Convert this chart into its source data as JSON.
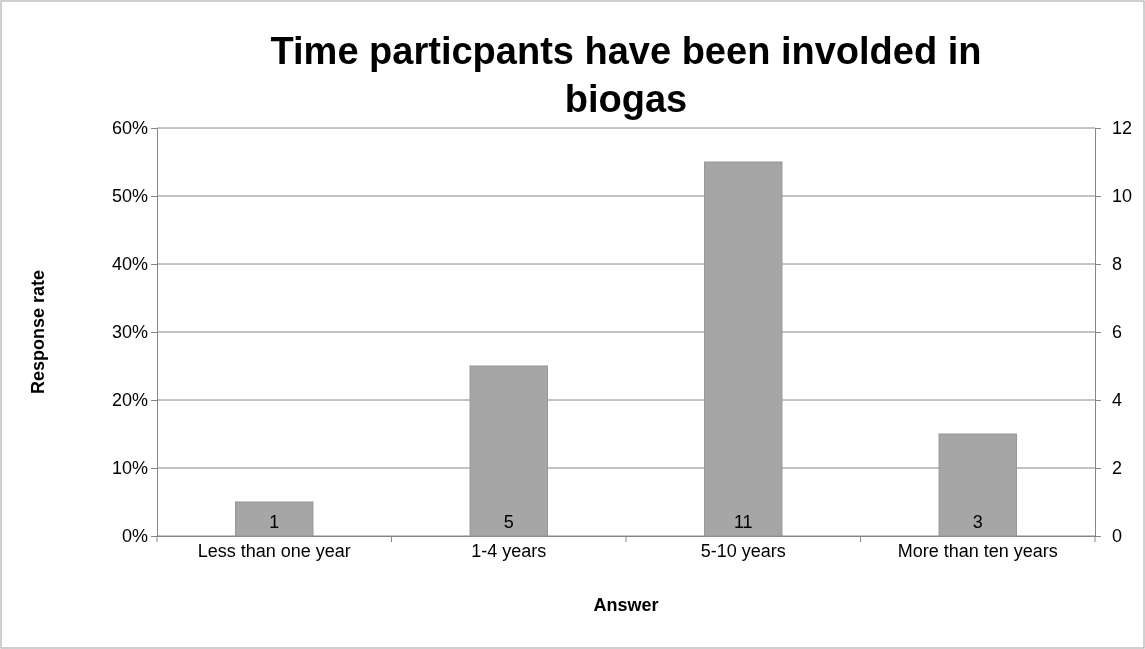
{
  "chart_data": {
    "type": "bar",
    "title": "Time particpants have been involded in biogas",
    "xlabel": "Answer",
    "ylabel": "Response rate",
    "categories": [
      "Less than one year",
      "1-4 years",
      "5-10 years",
      "More than ten years"
    ],
    "series": [
      {
        "color": "#a6a6a6",
        "axis": "y2",
        "values": [
          1,
          5,
          11,
          3
        ]
      }
    ],
    "ylim": [
      0,
      60
    ],
    "yticks": [
      {
        "value": 0,
        "label": "0%"
      },
      {
        "value": 10,
        "label": "10%"
      },
      {
        "value": 20,
        "label": "20%"
      },
      {
        "value": 30,
        "label": "30%"
      },
      {
        "value": 40,
        "label": "40%"
      },
      {
        "value": 50,
        "label": "50%"
      },
      {
        "value": 60,
        "label": "60%"
      }
    ],
    "y2lim": [
      0,
      12
    ],
    "y2ticks": [
      0,
      2,
      4,
      6,
      8,
      10,
      12
    ],
    "grid": "y",
    "data_labels": true
  }
}
